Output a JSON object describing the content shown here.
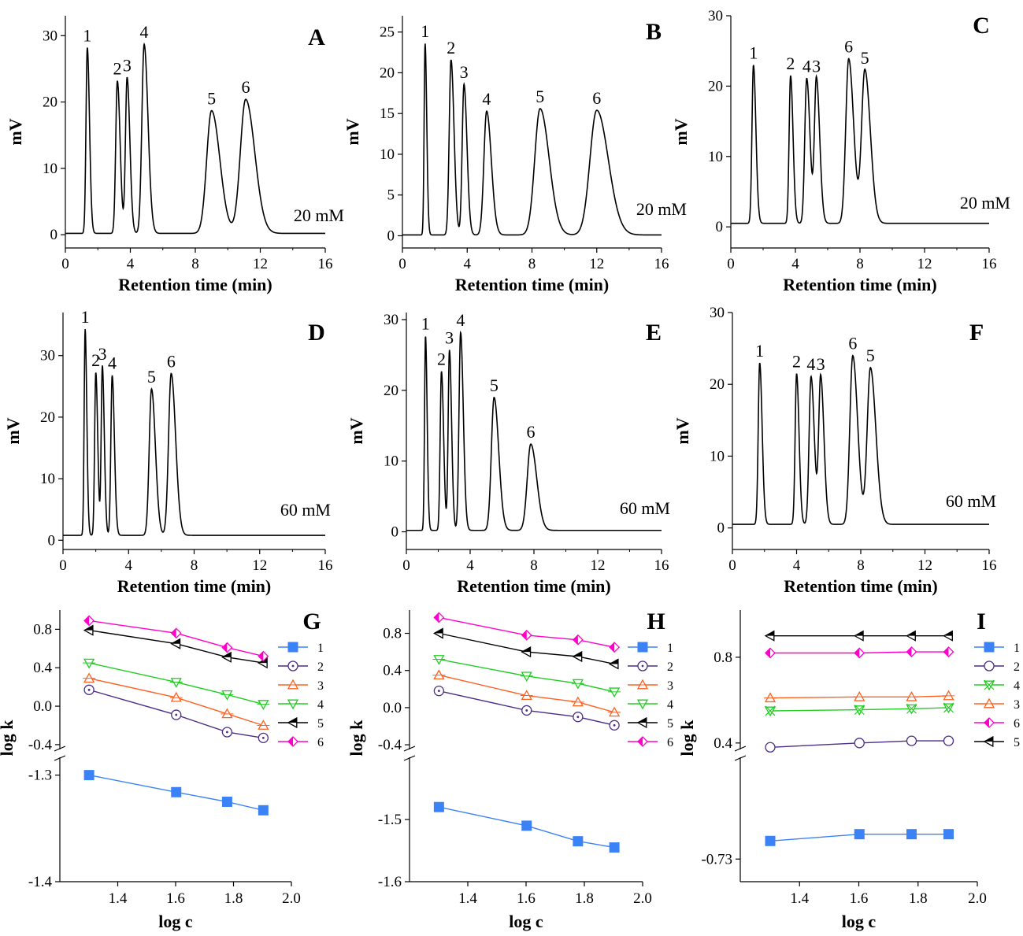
{
  "chromatograms": [
    {
      "letter": "A",
      "conc": "20 mM",
      "xlabel": "Retention time (min)",
      "ylabel": "mV",
      "xlim": [
        0,
        16
      ],
      "ylim": [
        -2,
        33
      ],
      "xticks": [
        0,
        4,
        8,
        12,
        16
      ],
      "yticks": [
        0,
        10,
        20,
        30
      ],
      "baseline": 0.2,
      "peaks": [
        {
          "label": "1",
          "t": 1.35,
          "h": 28,
          "w": 0.08
        },
        {
          "label": "2",
          "t": 3.2,
          "h": 23,
          "w": 0.1
        },
        {
          "label": "3",
          "t": 3.8,
          "h": 23.5,
          "w": 0.1
        },
        {
          "label": "4",
          "t": 4.85,
          "h": 28.5,
          "w": 0.14
        },
        {
          "label": "5",
          "t": 9.0,
          "h": 18.5,
          "w": 0.3
        },
        {
          "label": "6",
          "t": 11.1,
          "h": 20.2,
          "w": 0.33
        }
      ]
    },
    {
      "letter": "B",
      "conc": "20 mM",
      "xlabel": "Retention time (min)",
      "ylabel": "mV",
      "xlim": [
        0,
        16
      ],
      "ylim": [
        -1.5,
        27
      ],
      "xticks": [
        0,
        4,
        8,
        12,
        16
      ],
      "yticks": [
        0,
        5,
        10,
        15,
        20,
        25
      ],
      "baseline": 0.1,
      "peaks": [
        {
          "label": "1",
          "t": 1.4,
          "h": 23.5,
          "w": 0.06
        },
        {
          "label": "2",
          "t": 3.0,
          "h": 21.5,
          "w": 0.11
        },
        {
          "label": "3",
          "t": 3.8,
          "h": 18.5,
          "w": 0.11
        },
        {
          "label": "4",
          "t": 5.2,
          "h": 15.2,
          "w": 0.17
        },
        {
          "label": "5",
          "t": 8.5,
          "h": 15.5,
          "w": 0.33
        },
        {
          "label": "6",
          "t": 12.0,
          "h": 15.3,
          "w": 0.42
        }
      ]
    },
    {
      "letter": "C",
      "conc": "20 mM",
      "xlabel": "Retention time (min)",
      "ylabel": "mV",
      "xlim": [
        0,
        16
      ],
      "ylim": [
        -3,
        30
      ],
      "xticks": [
        0,
        4,
        8,
        12,
        16
      ],
      "yticks": [
        0,
        10,
        20,
        30
      ],
      "baseline": 0.5,
      "peaks": [
        {
          "label": "1",
          "t": 1.4,
          "h": 22.5,
          "w": 0.09
        },
        {
          "label": "2",
          "t": 3.7,
          "h": 21.0,
          "w": 0.09
        },
        {
          "label": "4",
          "t": 4.7,
          "h": 20.6,
          "w": 0.12
        },
        {
          "label": "3",
          "t": 5.3,
          "h": 20.6,
          "w": 0.12
        },
        {
          "label": "6",
          "t": 7.3,
          "h": 23.4,
          "w": 0.18
        },
        {
          "label": "5",
          "t": 8.3,
          "h": 21.8,
          "w": 0.2
        }
      ]
    },
    {
      "letter": "D",
      "conc": "60 mM",
      "xlabel": "Retention time (min)",
      "ylabel": "mV",
      "xlim": [
        0,
        16
      ],
      "ylim": [
        -1.5,
        37
      ],
      "xticks": [
        0,
        4,
        8,
        12,
        16
      ],
      "yticks": [
        0,
        10,
        20,
        30
      ],
      "baseline": 0.8,
      "peaks": [
        {
          "label": "1",
          "t": 1.35,
          "h": 33.5,
          "w": 0.06
        },
        {
          "label": "2",
          "t": 2.0,
          "h": 26.5,
          "w": 0.07
        },
        {
          "label": "3",
          "t": 2.4,
          "h": 27.5,
          "w": 0.07
        },
        {
          "label": "4",
          "t": 3.0,
          "h": 26.0,
          "w": 0.08
        },
        {
          "label": "5",
          "t": 5.4,
          "h": 23.8,
          "w": 0.14
        },
        {
          "label": "6",
          "t": 6.6,
          "h": 26.3,
          "w": 0.16
        }
      ]
    },
    {
      "letter": "E",
      "conc": "60 mM",
      "xlabel": "Retention time (min)",
      "ylabel": "mV",
      "xlim": [
        0,
        16
      ],
      "ylim": [
        -2.5,
        31
      ],
      "xticks": [
        0,
        4,
        8,
        12,
        16
      ],
      "yticks": [
        0,
        10,
        20,
        30
      ],
      "baseline": 0.2,
      "peaks": [
        {
          "label": "1",
          "t": 1.2,
          "h": 27.5,
          "w": 0.06
        },
        {
          "label": "2",
          "t": 2.2,
          "h": 22.5,
          "w": 0.08
        },
        {
          "label": "3",
          "t": 2.7,
          "h": 25.5,
          "w": 0.08
        },
        {
          "label": "4",
          "t": 3.4,
          "h": 28.0,
          "w": 0.1
        },
        {
          "label": "5",
          "t": 5.5,
          "h": 18.8,
          "w": 0.17
        },
        {
          "label": "6",
          "t": 7.8,
          "h": 12.2,
          "w": 0.22
        }
      ]
    },
    {
      "letter": "F",
      "conc": "60 mM",
      "xlabel": "Retention time (min)",
      "ylabel": "mV",
      "xlim": [
        0,
        16
      ],
      "ylim": [
        -3,
        30
      ],
      "xticks": [
        0,
        4,
        8,
        12,
        16
      ],
      "yticks": [
        0,
        10,
        20,
        30
      ],
      "baseline": 0.5,
      "peaks": [
        {
          "label": "1",
          "t": 1.7,
          "h": 22.5,
          "w": 0.09
        },
        {
          "label": "2",
          "t": 4.0,
          "h": 21.0,
          "w": 0.09
        },
        {
          "label": "4",
          "t": 4.9,
          "h": 20.6,
          "w": 0.12
        },
        {
          "label": "3",
          "t": 5.5,
          "h": 20.6,
          "w": 0.12
        },
        {
          "label": "6",
          "t": 7.5,
          "h": 23.5,
          "w": 0.18
        },
        {
          "label": "5",
          "t": 8.6,
          "h": 21.8,
          "w": 0.2
        }
      ]
    }
  ],
  "lnplots": [
    {
      "letter": "G",
      "xlabel": "log c",
      "ylabel": "log k",
      "xlim": [
        1.2,
        2.0
      ],
      "xticks": [
        "1.4",
        "1.6",
        "1.8",
        "2.0"
      ],
      "upper": {
        "ylim": [
          -0.45,
          1.0
        ],
        "yticks": [
          "-0.4",
          "0.0",
          "0.4",
          "0.8"
        ]
      },
      "lower": {
        "ylim": [
          -1.4,
          -1.2833
        ],
        "yticks": [
          "-1.3",
          "-1.4"
        ]
      },
      "x": [
        1.301,
        1.602,
        1.778,
        1.903
      ],
      "series": [
        {
          "name": "1",
          "marker": "square",
          "color": "#3b82f6",
          "values": [
            -1.3,
            -1.316,
            -1.325,
            -1.333
          ]
        },
        {
          "name": "2",
          "marker": "circle-dot",
          "color": "#4b2c86",
          "values": [
            0.17,
            -0.09,
            -0.27,
            -0.33
          ]
        },
        {
          "name": "3",
          "marker": "triangle-up",
          "color": "#ff6020",
          "values": [
            0.29,
            0.09,
            -0.08,
            -0.2
          ]
        },
        {
          "name": "4",
          "marker": "triangle-down",
          "color": "#22cc22",
          "values": [
            0.45,
            0.25,
            0.12,
            0.02
          ]
        },
        {
          "name": "5",
          "marker": "triangle-left-half",
          "color": "#000000",
          "values": [
            0.79,
            0.65,
            0.51,
            0.45
          ]
        },
        {
          "name": "6",
          "marker": "diamond-half",
          "color": "#ff00cc",
          "values": [
            0.89,
            0.76,
            0.61,
            0.52
          ]
        }
      ]
    },
    {
      "letter": "H",
      "xlabel": "log c",
      "ylabel": "log k",
      "xlim": [
        1.2,
        2.0
      ],
      "xticks": [
        "1.4",
        "1.6",
        "1.8",
        "2.0"
      ],
      "upper": {
        "ylim": [
          -0.45,
          1.05
        ],
        "yticks": [
          "-0.4",
          "0.0",
          "0.4",
          "0.8"
        ]
      },
      "lower": {
        "ylim": [
          -1.6,
          -1.4
        ],
        "yticks": [
          "-1.5",
          "-1.6"
        ]
      },
      "x": [
        1.301,
        1.602,
        1.778,
        1.903
      ],
      "series": [
        {
          "name": "1",
          "marker": "square",
          "color": "#3b82f6",
          "values": [
            -1.48,
            -1.51,
            -1.535,
            -1.545
          ]
        },
        {
          "name": "2",
          "marker": "circle-dot",
          "color": "#4b2c86",
          "values": [
            0.18,
            -0.03,
            -0.1,
            -0.19
          ]
        },
        {
          "name": "3",
          "marker": "triangle-up",
          "color": "#ff6020",
          "values": [
            0.35,
            0.13,
            0.06,
            -0.05
          ]
        },
        {
          "name": "4",
          "marker": "triangle-down",
          "color": "#22cc22",
          "values": [
            0.52,
            0.34,
            0.26,
            0.17
          ]
        },
        {
          "name": "5",
          "marker": "triangle-left-half",
          "color": "#000000",
          "values": [
            0.8,
            0.6,
            0.55,
            0.47
          ]
        },
        {
          "name": "6",
          "marker": "diamond-half",
          "color": "#ff00cc",
          "values": [
            0.97,
            0.78,
            0.73,
            0.65
          ]
        }
      ]
    },
    {
      "letter": "I",
      "xlabel": "log c",
      "ylabel": "log k",
      "xlim": [
        1.2,
        2.0
      ],
      "xticks": [
        "1.4",
        "1.6",
        "1.8",
        "2.0"
      ],
      "upper": {
        "ylim": [
          0.37,
          1.02
        ],
        "yticks": [
          "0.4",
          "0.8"
        ]
      },
      "lower": {
        "ylim": [
          -0.74,
          -0.685
        ],
        "yticks": [
          "-0.73"
        ]
      },
      "x": [
        1.301,
        1.602,
        1.778,
        1.903
      ],
      "series": [
        {
          "name": "1",
          "marker": "square",
          "color": "#3b82f6",
          "values": [
            -0.722,
            -0.719,
            -0.719,
            -0.719
          ]
        },
        {
          "name": "2",
          "marker": "circle",
          "color": "#4b2c86",
          "values": [
            0.38,
            0.4,
            0.41,
            0.41
          ]
        },
        {
          "name": "4",
          "marker": "x-tri",
          "color": "#22cc22",
          "values": [
            0.55,
            0.555,
            0.56,
            0.565
          ]
        },
        {
          "name": "3",
          "marker": "triangle-up",
          "color": "#ff6020",
          "values": [
            0.61,
            0.615,
            0.615,
            0.62
          ]
        },
        {
          "name": "6",
          "marker": "diamond-half",
          "color": "#ff00cc",
          "values": [
            0.82,
            0.82,
            0.825,
            0.825
          ]
        },
        {
          "name": "5",
          "marker": "triangle-left-half",
          "color": "#000000",
          "values": [
            0.9,
            0.9,
            0.9,
            0.9
          ]
        }
      ]
    }
  ],
  "chart_data": [
    {
      "type": "line",
      "title": "A",
      "annotation": "20 mM",
      "xlabel": "Retention time (min)",
      "ylabel": "mV",
      "xlim": [
        0,
        16
      ],
      "peaks_min": {
        "1": 1.35,
        "2": 3.2,
        "3": 3.8,
        "4": 4.85,
        "5": 9.0,
        "6": 11.1
      },
      "peak_heights_mV": {
        "1": 28,
        "2": 23,
        "3": 23.5,
        "4": 28.5,
        "5": 18.5,
        "6": 20.2
      }
    },
    {
      "type": "line",
      "title": "B",
      "annotation": "20 mM",
      "xlabel": "Retention time (min)",
      "ylabel": "mV",
      "xlim": [
        0,
        16
      ],
      "peaks_min": {
        "1": 1.4,
        "2": 3.0,
        "3": 3.8,
        "4": 5.2,
        "5": 8.5,
        "6": 12.0
      },
      "peak_heights_mV": {
        "1": 23.5,
        "2": 21.5,
        "3": 18.5,
        "4": 15.2,
        "5": 15.5,
        "6": 15.3
      }
    },
    {
      "type": "line",
      "title": "C",
      "annotation": "20 mM",
      "xlabel": "Retention time (min)",
      "ylabel": "mV",
      "xlim": [
        0,
        16
      ],
      "peaks_min": {
        "1": 1.4,
        "2": 3.7,
        "4": 4.7,
        "3": 5.3,
        "6": 7.3,
        "5": 8.3
      },
      "peak_heights_mV": {
        "1": 22.5,
        "2": 21.0,
        "4": 20.6,
        "3": 20.6,
        "6": 23.4,
        "5": 21.8
      }
    },
    {
      "type": "line",
      "title": "D",
      "annotation": "60 mM",
      "xlabel": "Retention time (min)",
      "ylabel": "mV",
      "xlim": [
        0,
        16
      ],
      "peaks_min": {
        "1": 1.35,
        "2": 2.0,
        "3": 2.4,
        "4": 3.0,
        "5": 5.4,
        "6": 6.6
      },
      "peak_heights_mV": {
        "1": 33.5,
        "2": 26.5,
        "3": 27.5,
        "4": 26.0,
        "5": 23.8,
        "6": 26.3
      }
    },
    {
      "type": "line",
      "title": "E",
      "annotation": "60 mM",
      "xlabel": "Retention time (min)",
      "ylabel": "mV",
      "xlim": [
        0,
        16
      ],
      "peaks_min": {
        "1": 1.2,
        "2": 2.2,
        "3": 2.7,
        "4": 3.4,
        "5": 5.5,
        "6": 7.8
      },
      "peak_heights_mV": {
        "1": 27.5,
        "2": 22.5,
        "3": 25.5,
        "4": 28.0,
        "5": 18.8,
        "6": 12.2
      }
    },
    {
      "type": "line",
      "title": "F",
      "annotation": "60 mM",
      "xlabel": "Retention time (min)",
      "ylabel": "mV",
      "xlim": [
        0,
        16
      ],
      "peaks_min": {
        "1": 1.7,
        "2": 4.0,
        "4": 4.9,
        "3": 5.5,
        "6": 7.5,
        "5": 8.6
      },
      "peak_heights_mV": {
        "1": 22.5,
        "2": 21.0,
        "4": 20.6,
        "3": 20.6,
        "6": 23.5,
        "5": 21.8
      }
    },
    {
      "type": "line",
      "title": "G",
      "xlabel": "log c",
      "ylabel": "log k",
      "x": [
        1.301,
        1.602,
        1.778,
        1.903
      ],
      "series": [
        {
          "name": "1",
          "values": [
            -1.3,
            -1.316,
            -1.325,
            -1.333
          ]
        },
        {
          "name": "2",
          "values": [
            0.17,
            -0.09,
            -0.27,
            -0.33
          ]
        },
        {
          "name": "3",
          "values": [
            0.29,
            0.09,
            -0.08,
            -0.2
          ]
        },
        {
          "name": "4",
          "values": [
            0.45,
            0.25,
            0.12,
            0.02
          ]
        },
        {
          "name": "5",
          "values": [
            0.79,
            0.65,
            0.51,
            0.45
          ]
        },
        {
          "name": "6",
          "values": [
            0.89,
            0.76,
            0.61,
            0.52
          ]
        }
      ]
    },
    {
      "type": "line",
      "title": "H",
      "xlabel": "log c",
      "ylabel": "log k",
      "x": [
        1.301,
        1.602,
        1.778,
        1.903
      ],
      "series": [
        {
          "name": "1",
          "values": [
            -1.48,
            -1.51,
            -1.535,
            -1.545
          ]
        },
        {
          "name": "2",
          "values": [
            0.18,
            -0.03,
            -0.1,
            -0.19
          ]
        },
        {
          "name": "3",
          "values": [
            0.35,
            0.13,
            0.06,
            -0.05
          ]
        },
        {
          "name": "4",
          "values": [
            0.52,
            0.34,
            0.26,
            0.17
          ]
        },
        {
          "name": "5",
          "values": [
            0.8,
            0.6,
            0.55,
            0.47
          ]
        },
        {
          "name": "6",
          "values": [
            0.97,
            0.78,
            0.73,
            0.65
          ]
        }
      ]
    },
    {
      "type": "line",
      "title": "I",
      "xlabel": "log c",
      "ylabel": "log k",
      "x": [
        1.301,
        1.602,
        1.778,
        1.903
      ],
      "series": [
        {
          "name": "1",
          "values": [
            -0.722,
            -0.719,
            -0.719,
            -0.719
          ]
        },
        {
          "name": "2",
          "values": [
            0.38,
            0.4,
            0.41,
            0.41
          ]
        },
        {
          "name": "4",
          "values": [
            0.55,
            0.555,
            0.56,
            0.565
          ]
        },
        {
          "name": "3",
          "values": [
            0.61,
            0.615,
            0.615,
            0.62
          ]
        },
        {
          "name": "6",
          "values": [
            0.82,
            0.82,
            0.825,
            0.825
          ]
        },
        {
          "name": "5",
          "values": [
            0.9,
            0.9,
            0.9,
            0.9
          ]
        }
      ]
    }
  ]
}
